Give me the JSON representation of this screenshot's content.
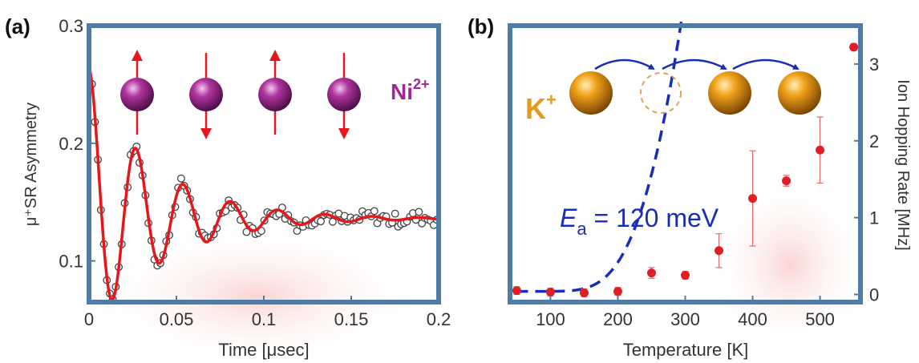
{
  "chart_data": [
    {
      "panel_label": "(a)",
      "type": "scatter",
      "xlabel": "Time [μsec]",
      "ylabel": "μ⁺SR  Asymmetry",
      "xlim": [
        0,
        0.2
      ],
      "ylim": [
        0.065,
        0.3
      ],
      "x_ticks": [
        0,
        0.05,
        0.1,
        0.15,
        0.2
      ],
      "x_tick_labels": [
        "0",
        "0.05",
        "0.1",
        "0.15",
        "0.2"
      ],
      "y_ticks": [
        0.1,
        0.2,
        0.3
      ],
      "y_tick_labels": [
        "0.1",
        "0.2",
        "0.3"
      ],
      "annotation": {
        "ion": "Ni",
        "charge": "2+"
      },
      "fit": {
        "model": "oscillation",
        "baseline": 0.136,
        "start_value": 0.265,
        "relax_amplitude": 0.02,
        "relax_rate": 60,
        "osc_amplitude": 0.109,
        "osc_rate": 25,
        "frequency": 37,
        "phase": 0,
        "color": "#e8161b"
      },
      "colors": {
        "data_points": "#444444",
        "fit": "#e8161b",
        "spins": "#a0289a",
        "arrows": "#e8161b",
        "frame": "#4f7ca6",
        "annotation": "#a0289a"
      }
    },
    {
      "panel_label": "(b)",
      "type": "scatter",
      "xlabel": "Temperature [K]",
      "ylabel": "Ion  Hopping  Rate  [MHz]",
      "xlim": [
        40,
        560
      ],
      "ylim": [
        -0.1,
        3.5
      ],
      "x_ticks": [
        100,
        200,
        300,
        400,
        500
      ],
      "x_tick_labels": [
        "100",
        "200",
        "300",
        "400",
        "500"
      ],
      "y_ticks": [
        0,
        1,
        2,
        3
      ],
      "y_tick_labels": [
        "0",
        "1",
        "2",
        "3"
      ],
      "series": [
        {
          "x": [
            50,
            100,
            150,
            200,
            250,
            300,
            350,
            400,
            450,
            500,
            550
          ],
          "values": [
            0.05,
            0.03,
            0.02,
            0.04,
            0.28,
            0.25,
            0.57,
            1.25,
            1.48,
            1.88,
            3.22
          ],
          "err": [
            0.05,
            0.05,
            0.05,
            0.05,
            0.07,
            0.05,
            0.22,
            0.62,
            0.07,
            0.43,
            0.04
          ]
        }
      ],
      "fit": {
        "model": "arrhenius",
        "prefactor": 400,
        "activation_energy_meV": 120,
        "offset": 0.04,
        "color": "#1a2db8"
      },
      "annotation": {
        "ion": "K",
        "charge": "+",
        "label_symbol": "E",
        "label_sub": "a",
        "label_value": " = 120 meV"
      },
      "colors": {
        "data_points": "#e01e24",
        "fit": "#1a2db8",
        "ions": "#f0a21a",
        "annotation": "#1a2db8",
        "ion_label": "#e39b1c",
        "frame": "#4f7ca6"
      }
    }
  ]
}
